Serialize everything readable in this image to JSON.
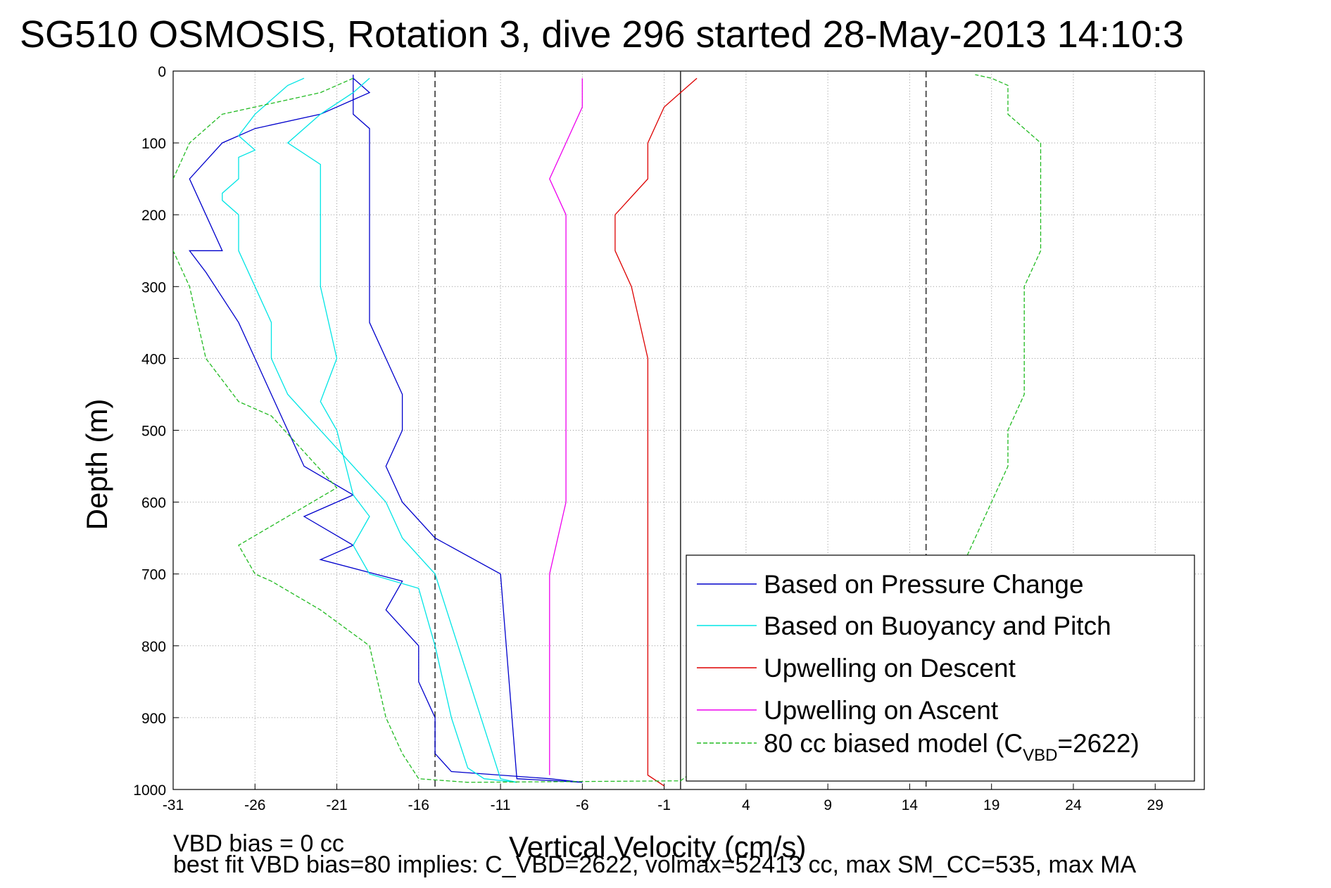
{
  "chart_data": {
    "type": "line",
    "title": "SG510 OSMOSIS, Rotation 3, dive 296 started 28-May-2013 14:10:3",
    "xlabel": "Vertical Velocity (cm/s)",
    "ylabel": "Depth (m)",
    "xlim": [
      -31,
      32
    ],
    "ylim": [
      0,
      1000
    ],
    "y_reversed": true,
    "grid": true,
    "xticks": [
      -31,
      -26,
      -21,
      -16,
      -11,
      -6,
      -1,
      4,
      9,
      14,
      19,
      24,
      29
    ],
    "yticks": [
      0,
      100,
      200,
      300,
      400,
      500,
      600,
      700,
      800,
      900,
      1000
    ],
    "reference_lines": [
      {
        "x": -15,
        "style": "dashed"
      },
      {
        "x": 0,
        "style": "solid"
      },
      {
        "x": 15,
        "style": "dashed"
      }
    ],
    "legend_position": "lower-right",
    "series": [
      {
        "name": "Based on Pressure Change",
        "color": "#0000cc",
        "style": "solid",
        "x": [
          -20,
          -19,
          -22,
          -26,
          -28,
          -30,
          -29,
          -28,
          -30,
          -29,
          -27,
          -26,
          -25,
          -24,
          -23,
          -20,
          -23,
          -20,
          -22,
          -17,
          -18,
          -16,
          -16,
          -15,
          -15,
          -14,
          -8,
          -6,
          -10,
          -11,
          -15,
          -17,
          -18,
          -17,
          -17,
          -18,
          -19,
          -19,
          -19,
          -19,
          -19,
          -19,
          -19,
          -20,
          -20,
          -20,
          -20,
          -20,
          -20
        ],
        "y": [
          10,
          30,
          60,
          80,
          100,
          150,
          200,
          250,
          250,
          280,
          350,
          400,
          450,
          500,
          550,
          590,
          620,
          660,
          680,
          710,
          750,
          800,
          850,
          900,
          950,
          975,
          985,
          990,
          985,
          700,
          650,
          600,
          550,
          500,
          450,
          400,
          350,
          300,
          250,
          200,
          150,
          100,
          80,
          60,
          50,
          30,
          20,
          10,
          5
        ]
      },
      {
        "name": "Based on Buoyancy and Pitch",
        "color": "#00e5e5",
        "style": "solid",
        "x": [
          -19,
          -20,
          -22,
          -24,
          -22,
          -22,
          -22,
          -22,
          -21,
          -22,
          -21,
          -20,
          -19,
          -20,
          -19,
          -16,
          -15,
          -14,
          -13,
          -12,
          -10,
          -11,
          -15,
          -17,
          -18,
          -20,
          -22,
          -24,
          -25,
          -25,
          -26,
          -27,
          -27,
          -28,
          -28,
          -27,
          -27,
          -26,
          -27,
          -26,
          -25,
          -24,
          -23
        ],
        "y": [
          10,
          30,
          60,
          100,
          130,
          200,
          250,
          300,
          400,
          460,
          500,
          590,
          620,
          660,
          700,
          720,
          800,
          900,
          970,
          985,
          990,
          985,
          700,
          650,
          600,
          550,
          500,
          450,
          400,
          350,
          300,
          250,
          200,
          180,
          170,
          150,
          120,
          110,
          90,
          60,
          40,
          20,
          10
        ]
      },
      {
        "name": "Upwelling on Descent",
        "color": "#dd0000",
        "style": "solid",
        "x": [
          1,
          -1,
          -2,
          -2,
          -4,
          -4,
          -3,
          -2,
          -2,
          -2,
          -2,
          -2,
          -2,
          -2,
          -2,
          -1
        ],
        "y": [
          10,
          50,
          100,
          150,
          200,
          250,
          300,
          400,
          500,
          600,
          700,
          800,
          900,
          950,
          980,
          995
        ]
      },
      {
        "name": "Upwelling on Ascent",
        "color": "#ee00ee",
        "style": "solid",
        "x": [
          -6,
          -6,
          -7,
          -8,
          -7,
          -7,
          -7,
          -7,
          -7,
          -7,
          -8,
          -8,
          -8,
          -8,
          -8
        ],
        "y": [
          10,
          50,
          100,
          150,
          200,
          250,
          300,
          400,
          500,
          600,
          700,
          800,
          900,
          950,
          980
        ]
      },
      {
        "name": "80 cc biased model (C",
        "name_sub": "VBD",
        "name_suffix": "=2622)",
        "color": "#22bb22",
        "style": "dashed",
        "x": [
          -20,
          -22,
          -28,
          -30,
          -31,
          -32,
          -31,
          -30,
          -29,
          -27,
          -25,
          -21,
          -24,
          -27,
          -26,
          -25,
          -22,
          -19,
          -18,
          -17,
          -16,
          -13,
          0,
          17,
          18,
          19,
          20,
          20,
          21,
          21,
          21,
          21,
          22,
          22,
          22,
          22,
          22,
          21,
          20,
          20,
          20,
          20,
          19,
          18
        ],
        "y": [
          10,
          30,
          60,
          100,
          150,
          200,
          250,
          300,
          400,
          460,
          480,
          580,
          620,
          660,
          700,
          710,
          750,
          800,
          900,
          950,
          985,
          990,
          988,
          700,
          650,
          600,
          550,
          500,
          450,
          400,
          350,
          300,
          250,
          200,
          150,
          120,
          100,
          80,
          60,
          40,
          30,
          20,
          10,
          5
        ]
      }
    ],
    "annotations": [
      "VBD bias = 0 cc",
      "best fit VBD bias=80 implies: C_VBD=2622, volmax=52413 cc, max SM_CC=535, max MA"
    ]
  },
  "notes": {
    "bias": "VBD bias = 0 cc",
    "fit": "best fit VBD bias=80 implies: C_VBD=2622, volmax=52413 cc, max SM_CC=535, max MA"
  }
}
